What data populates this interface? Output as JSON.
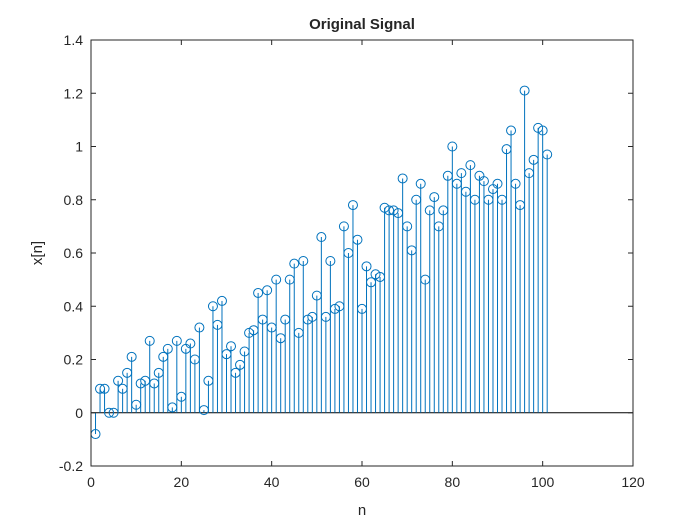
{
  "chart_data": {
    "type": "stem",
    "title": "Original Signal",
    "xlabel": "n",
    "ylabel": "x[n]",
    "xlim": [
      0,
      120
    ],
    "ylim": [
      -0.2,
      1.4
    ],
    "xticks": [
      "0",
      "20",
      "40",
      "60",
      "80",
      "100",
      "120"
    ],
    "yticks": [
      "-0.2",
      "0",
      "0.2",
      "0.4",
      "0.6",
      "0.8",
      "1",
      "1.2",
      "1.4"
    ],
    "grid": false,
    "color": "#0072BD",
    "x": [
      1,
      2,
      3,
      4,
      5,
      6,
      7,
      8,
      9,
      10,
      11,
      12,
      13,
      14,
      15,
      16,
      17,
      18,
      19,
      20,
      21,
      22,
      23,
      24,
      25,
      26,
      27,
      28,
      29,
      30,
      31,
      32,
      33,
      34,
      35,
      36,
      37,
      38,
      39,
      40,
      41,
      42,
      43,
      44,
      45,
      46,
      47,
      48,
      49,
      50,
      51,
      52,
      53,
      54,
      55,
      56,
      57,
      58,
      59,
      60,
      61,
      62,
      63,
      64,
      65,
      66,
      67,
      68,
      69,
      70,
      71,
      72,
      73,
      74,
      75,
      76,
      77,
      78,
      79,
      80,
      81,
      82,
      83,
      84,
      85,
      86,
      87,
      88,
      89,
      90,
      91,
      92,
      93,
      94,
      95,
      96,
      97,
      98,
      99,
      100,
      101
    ],
    "y": [
      -0.08,
      0.09,
      0.09,
      0.0,
      0.0,
      0.12,
      0.09,
      0.15,
      0.21,
      0.03,
      0.11,
      0.12,
      0.27,
      0.11,
      0.15,
      0.21,
      0.24,
      0.02,
      0.27,
      0.06,
      0.24,
      0.26,
      0.2,
      0.32,
      0.01,
      0.12,
      0.4,
      0.33,
      0.42,
      0.22,
      0.25,
      0.15,
      0.18,
      0.23,
      0.3,
      0.31,
      0.45,
      0.35,
      0.46,
      0.32,
      0.5,
      0.28,
      0.35,
      0.5,
      0.56,
      0.3,
      0.57,
      0.35,
      0.36,
      0.44,
      0.66,
      0.36,
      0.57,
      0.39,
      0.4,
      0.7,
      0.6,
      0.78,
      0.65,
      0.39,
      0.55,
      0.49,
      0.52,
      0.51,
      0.77,
      0.76,
      0.76,
      0.75,
      0.88,
      0.7,
      0.61,
      0.8,
      0.86,
      0.5,
      0.76,
      0.81,
      0.7,
      0.76,
      0.89,
      1.0,
      0.86,
      0.9,
      0.83,
      0.93,
      0.8,
      0.89,
      0.87,
      0.8,
      0.84,
      0.86,
      0.8,
      0.99,
      1.06,
      0.86,
      0.78,
      1.21,
      0.9,
      0.95,
      1.07,
      1.06,
      0.97
    ]
  }
}
